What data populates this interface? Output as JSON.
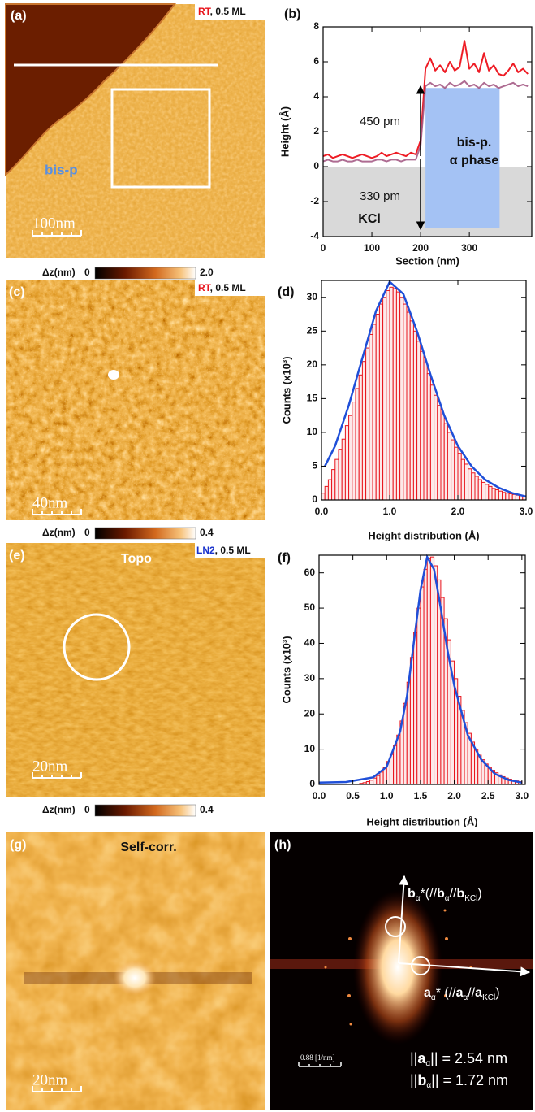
{
  "figure": {
    "panels": {
      "a": {
        "label": "(a)",
        "tag": "RT",
        "tag_rest": ", 0.5 ML",
        "region": "bis-p",
        "scale_bar": "100nm",
        "colorbar": {
          "label": "Δz(nm)",
          "min": "0",
          "max": "2.0"
        }
      },
      "c": {
        "label": "(c)",
        "tag": "RT",
        "tag_rest": ", 0.5 ML",
        "scale_bar": "40nm",
        "colorbar": {
          "label": "Δz(nm)",
          "min": "0",
          "max": "0.4"
        }
      },
      "e": {
        "label": "(e)",
        "title": "Topo",
        "tag": "LN2",
        "tag_rest": ", 0.5 ML",
        "scale_bar": "20nm",
        "colorbar": {
          "label": "Δz(nm)",
          "min": "0",
          "max": "0.4"
        }
      },
      "g": {
        "label": "(g)",
        "title": "Self-corr.",
        "scale_bar": "20nm"
      },
      "h": {
        "label": "(h)",
        "scale_bar": "0.88 [1/nm]",
        "b_label": [
          {
            "t": "b",
            "bold": true
          },
          {
            "t": "α",
            "sub": true
          },
          {
            "t": "*(//"
          },
          {
            "t": "b",
            "bold": true
          },
          {
            "t": "α",
            "sub": true
          },
          {
            "t": "//"
          },
          {
            "t": "b",
            "bold": true
          },
          {
            "t": "KCl",
            "sub": true
          },
          {
            "t": ")"
          }
        ],
        "a_label": [
          {
            "t": "a",
            "bold": true
          },
          {
            "t": "α",
            "sub": true
          },
          {
            "t": "* (//"
          },
          {
            "t": "a",
            "bold": true
          },
          {
            "t": "α",
            "sub": true
          },
          {
            "t": "//"
          },
          {
            "t": "a",
            "bold": true
          },
          {
            "t": "KCl",
            "sub": true
          },
          {
            "t": ")"
          }
        ],
        "a_norm": [
          {
            "t": "||"
          },
          {
            "t": "a",
            "bold": true
          },
          {
            "t": "α",
            "sub": true
          },
          {
            "t": "|| = 2.54 nm"
          }
        ],
        "b_norm": [
          {
            "t": "||"
          },
          {
            "t": "b",
            "bold": true
          },
          {
            "t": "α",
            "sub": true
          },
          {
            "t": "|| = 1.72 nm"
          }
        ]
      }
    }
  },
  "chart_data": [
    {
      "type": "line",
      "panel_label": "(b)",
      "x_label": "Section (nm)",
      "y_label": "Height (Å)",
      "x": [
        0,
        10,
        20,
        30,
        40,
        50,
        60,
        70,
        80,
        90,
        100,
        110,
        120,
        130,
        140,
        150,
        160,
        170,
        180,
        190,
        200,
        210,
        220,
        230,
        240,
        250,
        260,
        270,
        280,
        290,
        300,
        310,
        320,
        330,
        340,
        350,
        360,
        370,
        380,
        390,
        400,
        410,
        420
      ],
      "series": [
        {
          "color": "#ee1c25",
          "values": [
            0.6,
            0.7,
            0.5,
            0.6,
            0.7,
            0.6,
            0.5,
            0.6,
            0.7,
            0.6,
            0.5,
            0.6,
            0.8,
            0.6,
            0.7,
            0.8,
            0.7,
            0.6,
            0.8,
            0.7,
            1.5,
            5.6,
            6.2,
            5.5,
            5.8,
            5.4,
            6.0,
            5.5,
            5.7,
            7.2,
            5.6,
            5.9,
            5.4,
            6.5,
            5.5,
            5.8,
            5.3,
            5.2,
            5.5,
            5.9,
            5.4,
            5.6,
            5.3
          ]
        },
        {
          "color": "#a0527f",
          "values": [
            0.3,
            0.4,
            0.3,
            0.3,
            0.4,
            0.3,
            0.3,
            0.4,
            0.3,
            0.3,
            0.3,
            0.4,
            0.4,
            0.3,
            0.4,
            0.4,
            0.3,
            0.4,
            0.4,
            0.4,
            1.2,
            4.6,
            4.8,
            4.6,
            4.7,
            4.5,
            4.8,
            4.6,
            4.7,
            4.9,
            4.6,
            4.7,
            4.5,
            4.8,
            4.6,
            4.7,
            4.5,
            4.6,
            4.7,
            4.8,
            4.6,
            4.7,
            4.6
          ]
        }
      ],
      "regions": [
        {
          "labels": [
            "KCl"
          ],
          "color": "#d9d9d9",
          "x": [
            0,
            428
          ],
          "y": [
            -4,
            0
          ]
        },
        {
          "labels": [
            "bis-p.",
            "α phase"
          ],
          "color": "#a4c2f4",
          "x": [
            210,
            362
          ],
          "y": [
            -3.5,
            4.5
          ]
        }
      ],
      "annotations": [
        "450 pm",
        "330 pm"
      ],
      "xlim": [
        0,
        428
      ],
      "ylim": [
        -4,
        8
      ],
      "xticks": [
        0,
        100,
        200,
        300
      ],
      "yticks": [
        -4,
        -2,
        0,
        2,
        4,
        6,
        8
      ]
    },
    {
      "type": "histogram",
      "panel_label": "(d)",
      "x_label": "Height distribution (Å)",
      "y_label": "Counts (x10³)",
      "color": "#e8141c",
      "bins": [
        0,
        0.05,
        0.1,
        0.15,
        0.2,
        0.25,
        0.3,
        0.35,
        0.4,
        0.45,
        0.5,
        0.55,
        0.6,
        0.65,
        0.7,
        0.75,
        0.8,
        0.85,
        0.9,
        0.95,
        1,
        1.05,
        1.1,
        1.15,
        1.2,
        1.25,
        1.3,
        1.35,
        1.4,
        1.45,
        1.5,
        1.55,
        1.6,
        1.65,
        1.7,
        1.75,
        1.8,
        1.85,
        1.9,
        1.95,
        2,
        2.05,
        2.1,
        2.15,
        2.2,
        2.25,
        2.3,
        2.35,
        2.4,
        2.45,
        2.5,
        2.55,
        2.6,
        2.65,
        2.7,
        2.75,
        2.8,
        2.85,
        2.9,
        2.95,
        3
      ],
      "values": [
        1,
        2,
        3,
        4.5,
        6,
        7.5,
        9,
        11,
        12.5,
        14.5,
        16.5,
        18.5,
        20.5,
        22.5,
        24.5,
        26,
        27.5,
        29,
        30,
        31,
        31.5,
        31.3,
        30.8,
        30,
        29,
        27.8,
        26.5,
        25,
        23.5,
        22,
        20.3,
        18.7,
        17,
        15.5,
        14,
        12.6,
        11.3,
        10,
        8.9,
        7.8,
        6.9,
        6,
        5.3,
        4.6,
        4,
        3.5,
        3,
        2.6,
        2.3,
        2,
        1.7,
        1.5,
        1.3,
        1.1,
        1,
        0.9,
        0.8,
        0.7,
        0.6,
        0.5
      ],
      "fit": {
        "color": "#1f4fd8",
        "x": [
          0.05,
          0.2,
          0.4,
          0.6,
          0.8,
          1.0,
          1.2,
          1.4,
          1.6,
          1.8,
          2.0,
          2.2,
          2.4,
          2.6,
          2.8,
          3.0
        ],
        "values": [
          5,
          8,
          14,
          21,
          28,
          32.3,
          30.5,
          25,
          18.5,
          12.5,
          8,
          5,
          3,
          1.8,
          1,
          0.5
        ]
      },
      "xlim": [
        0,
        3.0
      ],
      "ylim": [
        0,
        32.5
      ],
      "xticks": [
        {
          "value": 0,
          "label": "0.0"
        },
        {
          "value": 1,
          "label": "1.0"
        },
        {
          "value": 2,
          "label": "2.0"
        },
        {
          "value": 3,
          "label": "3.0"
        }
      ],
      "yticks": [
        0,
        5,
        10,
        15,
        20,
        25,
        30
      ]
    },
    {
      "type": "histogram",
      "panel_label": "(f)",
      "x_label": "Height distribution (Å)",
      "y_label": "Counts (x10³)",
      "color": "#e8141c",
      "bins": [
        0.6,
        0.65,
        0.7,
        0.75,
        0.8,
        0.85,
        0.9,
        0.95,
        1,
        1.05,
        1.1,
        1.15,
        1.2,
        1.25,
        1.3,
        1.35,
        1.4,
        1.45,
        1.5,
        1.55,
        1.6,
        1.65,
        1.7,
        1.75,
        1.8,
        1.85,
        1.9,
        1.95,
        2,
        2.05,
        2.1,
        2.15,
        2.2,
        2.25,
        2.3,
        2.35,
        2.4,
        2.45,
        2.5,
        2.55,
        2.6,
        2.65,
        2.7,
        2.75,
        2.8,
        2.85,
        2.9,
        2.95,
        3
      ],
      "values": [
        0.3,
        0.5,
        0.8,
        1.2,
        1.8,
        2.5,
        3.5,
        4.8,
        6.5,
        8.5,
        11,
        14,
        18,
        23,
        29,
        36,
        43,
        50,
        56,
        61,
        64,
        64.5,
        62,
        58,
        53,
        47,
        41,
        35,
        30,
        25,
        21,
        17.5,
        14.5,
        12,
        10,
        8.3,
        7,
        5.8,
        4.8,
        4,
        3.3,
        2.7,
        2.2,
        1.8,
        1.5,
        1.2,
        1,
        0.8
      ],
      "fit": {
        "color": "#1f4fd8",
        "x": [
          0,
          0.4,
          0.8,
          1.0,
          1.2,
          1.3,
          1.4,
          1.5,
          1.6,
          1.7,
          1.8,
          1.9,
          2.0,
          2.2,
          2.4,
          2.6,
          2.8,
          3.0
        ],
        "values": [
          0.5,
          0.7,
          2,
          5,
          15,
          25,
          40,
          55,
          64.5,
          61,
          50,
          38,
          28,
          14,
          7,
          3,
          1.3,
          0.5
        ]
      },
      "xlim": [
        0,
        3.05
      ],
      "ylim": [
        0,
        65
      ],
      "xticks": [
        {
          "value": 0,
          "label": "0.0"
        },
        {
          "value": 0.5,
          "label": "0.5"
        },
        {
          "value": 1,
          "label": "1.0"
        },
        {
          "value": 1.5,
          "label": "1.5"
        },
        {
          "value": 2,
          "label": "2.0"
        },
        {
          "value": 2.5,
          "label": "2.5"
        },
        {
          "value": 3,
          "label": "3.0"
        }
      ],
      "yticks": [
        0,
        10,
        20,
        30,
        40,
        50,
        60
      ]
    }
  ]
}
